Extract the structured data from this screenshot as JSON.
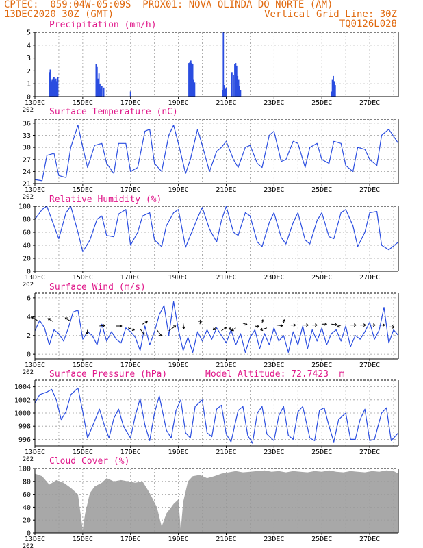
{
  "header": {
    "line1_left": "CPTEC:  059:04W-05:09S  PROX01: NOVA OLINDA DO NORTE (AM)",
    "line2_left": "13DEC2020 30Z (GMT)",
    "line2_right": "Vertical Grid Line: 30Z",
    "line3_right": "TQ0126L028"
  },
  "colors": {
    "header": "#e06a10",
    "panel_title": "#e0188a",
    "line": "#2a4de0",
    "cloud_fill": "#a8a8a8",
    "grid": "#9a9a9a",
    "arrow": "#000000"
  },
  "x_axis": {
    "tick_labels": [
      "13DEC",
      "15DEC",
      "17DEC",
      "19DEC",
      "21DEC",
      "23DEC",
      "25DEC",
      "27DEC"
    ],
    "year_label": "202"
  },
  "chart_data": [
    {
      "type": "bar",
      "title": "Precipitation (mm/h)",
      "ylim": [
        0,
        5
      ],
      "yticks": [
        "0",
        "1",
        "2",
        "3",
        "4",
        "5"
      ],
      "x_unit": "days since 13DEC 00Z",
      "x": [
        0.6,
        0.64,
        0.68,
        0.72,
        0.76,
        0.8,
        0.84,
        0.88,
        0.92,
        0.96,
        2.56,
        2.6,
        2.64,
        2.68,
        2.72,
        2.76,
        2.8,
        2.88,
        4.0,
        6.44,
        6.48,
        6.52,
        6.56,
        6.6,
        6.64,
        6.68,
        7.84,
        7.88,
        7.92,
        7.96,
        8.0,
        8.24,
        8.3,
        8.36,
        8.4,
        8.44,
        8.48,
        8.52,
        8.56,
        8.6,
        12.4,
        12.44,
        12.48,
        12.52,
        12.56
      ],
      "values": [
        1.9,
        2.1,
        1.2,
        1.3,
        1.4,
        1.5,
        1.3,
        1.4,
        1.2,
        1.5,
        2.5,
        2.3,
        1.4,
        1.8,
        1.0,
        0.6,
        0.8,
        0.7,
        0.4,
        2.6,
        2.7,
        2.8,
        2.6,
        2.5,
        1.3,
        1.1,
        0.5,
        5.0,
        0.9,
        0.6,
        0.7,
        1.9,
        1.7,
        2.5,
        2.6,
        2.4,
        1.6,
        1.3,
        0.8,
        0.5,
        0.4,
        1.3,
        1.6,
        1.2,
        0.9
      ],
      "grid": true
    },
    {
      "type": "line",
      "title": "Surface Temperature (nC)",
      "ylim": [
        21,
        37
      ],
      "yticks": [
        "21",
        "24",
        "27",
        "30",
        "33",
        "36"
      ],
      "x": [
        0,
        0.3,
        0.5,
        0.8,
        1.0,
        1.3,
        1.5,
        1.8,
        2.0,
        2.2,
        2.5,
        2.8,
        3.0,
        3.3,
        3.5,
        3.8,
        4.0,
        4.3,
        4.6,
        4.8,
        5.0,
        5.3,
        5.6,
        5.8,
        6.0,
        6.3,
        6.5,
        6.8,
        7.0,
        7.3,
        7.6,
        7.8,
        8.0,
        8.3,
        8.5,
        8.8,
        9.0,
        9.3,
        9.5,
        9.8,
        10.0,
        10.3,
        10.5,
        10.8,
        11.0,
        11.3,
        11.5,
        11.8,
        12.0,
        12.3,
        12.5,
        12.8,
        13.0,
        13.3,
        13.5,
        13.8,
        14.0,
        14.3,
        14.5,
        14.8,
        15.2
      ],
      "values": [
        22,
        21.7,
        28,
        28.5,
        23,
        22.5,
        30,
        35.5,
        30,
        25,
        30.5,
        31,
        26,
        23.5,
        31,
        31,
        24,
        25,
        34,
        34.5,
        26,
        24,
        33,
        35.5,
        31,
        23.5,
        27,
        34.5,
        30.5,
        24,
        29,
        30,
        31.5,
        27,
        25,
        30,
        30.5,
        26,
        25,
        33,
        34,
        26.5,
        27,
        31.5,
        31,
        25,
        30,
        31,
        27,
        26,
        31.5,
        31,
        25.5,
        24,
        30,
        29.5,
        27,
        25.5,
        33,
        34.5,
        31
      ],
      "grid": true
    },
    {
      "type": "line",
      "title": "Relative Humidity (%)",
      "ylim": [
        0,
        100
      ],
      "yticks": [
        "0",
        "20",
        "40",
        "60",
        "80",
        "100"
      ],
      "x": [
        0,
        0.3,
        0.5,
        0.8,
        1.0,
        1.3,
        1.5,
        1.8,
        2.0,
        2.3,
        2.6,
        2.8,
        3.0,
        3.3,
        3.5,
        3.8,
        4.0,
        4.3,
        4.5,
        4.8,
        5.0,
        5.3,
        5.5,
        5.8,
        6.0,
        6.3,
        6.5,
        6.8,
        7.0,
        7.3,
        7.6,
        7.8,
        8.0,
        8.3,
        8.5,
        8.8,
        9.0,
        9.3,
        9.5,
        9.8,
        10.0,
        10.3,
        10.5,
        10.8,
        11.0,
        11.3,
        11.5,
        11.8,
        12.0,
        12.3,
        12.5,
        12.8,
        13.0,
        13.3,
        13.5,
        13.8,
        14.0,
        14.3,
        14.5,
        14.8,
        15.2
      ],
      "values": [
        80,
        95,
        100,
        70,
        50,
        90,
        100,
        60,
        30,
        48,
        80,
        85,
        55,
        53,
        88,
        95,
        40,
        60,
        85,
        90,
        48,
        38,
        70,
        90,
        95,
        37,
        55,
        82,
        98,
        65,
        45,
        78,
        100,
        60,
        55,
        90,
        85,
        45,
        38,
        75,
        90,
        52,
        42,
        75,
        90,
        48,
        42,
        78,
        90,
        53,
        50,
        90,
        95,
        70,
        38,
        60,
        90,
        92,
        40,
        33,
        45
      ],
      "grid": true
    },
    {
      "type": "line",
      "title": "Surface Wind (m/s)",
      "ylim": [
        -0.5,
        6.5
      ],
      "yticks": [
        "0",
        "2",
        "4",
        "6"
      ],
      "x": [
        0,
        0.2,
        0.4,
        0.6,
        0.8,
        1.0,
        1.2,
        1.4,
        1.6,
        1.8,
        2.0,
        2.2,
        2.4,
        2.6,
        2.8,
        3.0,
        3.2,
        3.4,
        3.6,
        3.8,
        4.0,
        4.2,
        4.4,
        4.6,
        4.8,
        5.0,
        5.2,
        5.4,
        5.6,
        5.8,
        6.0,
        6.2,
        6.4,
        6.6,
        6.8,
        7.0,
        7.2,
        7.4,
        7.6,
        7.8,
        8.0,
        8.2,
        8.4,
        8.6,
        8.8,
        9.0,
        9.2,
        9.4,
        9.6,
        9.8,
        10.0,
        10.2,
        10.4,
        10.6,
        10.8,
        11.0,
        11.2,
        11.4,
        11.6,
        11.8,
        12.0,
        12.2,
        12.4,
        12.6,
        12.8,
        13.0,
        13.2,
        13.4,
        13.6,
        13.8,
        14.0,
        14.2,
        14.4,
        14.6,
        14.8,
        15.0,
        15.2
      ],
      "values": [
        2.5,
        3.6,
        2.8,
        1.0,
        2.6,
        2.2,
        1.4,
        2.8,
        4.5,
        4.7,
        1.6,
        2.4,
        2.0,
        1.0,
        3.2,
        1.4,
        2.4,
        1.6,
        1.2,
        2.8,
        2.4,
        1.8,
        0.4,
        3.0,
        1.0,
        2.4,
        4.2,
        5.2,
        2.0,
        5.6,
        2.6,
        0.4,
        1.8,
        0.2,
        2.4,
        1.4,
        2.6,
        1.6,
        2.8,
        2.0,
        1.2,
        2.6,
        1.0,
        2.2,
        0.2,
        1.8,
        2.6,
        0.6,
        2.2,
        1.0,
        2.8,
        1.4,
        2.0,
        0.2,
        2.4,
        1.0,
        3.0,
        0.6,
        2.6,
        1.4,
        2.8,
        1.0,
        2.2,
        2.6,
        1.4,
        3.0,
        0.8,
        2.0,
        1.6,
        2.4,
        3.4,
        1.6,
        2.6,
        5.0,
        1.2,
        2.6,
        2.0
      ],
      "arrows": [
        {
          "x": 0.1,
          "y": 3.6,
          "dx": -8,
          "dy": -5
        },
        {
          "x": 0.75,
          "y": 3.5,
          "dx": -7,
          "dy": -4
        },
        {
          "x": 1.5,
          "y": 3.5,
          "dx": -8,
          "dy": -5
        },
        {
          "x": 2.2,
          "y": 2.6,
          "dx": -1,
          "dy": 6
        },
        {
          "x": 2.7,
          "y": 3.0,
          "dx": 8,
          "dy": -1
        },
        {
          "x": 3.4,
          "y": 3.0,
          "dx": 8,
          "dy": 0
        },
        {
          "x": 3.9,
          "y": 2.8,
          "dx": 9,
          "dy": 3
        },
        {
          "x": 4.4,
          "y": 2.7,
          "dx": 6,
          "dy": 8
        },
        {
          "x": 4.5,
          "y": 3.2,
          "dx": 7,
          "dy": -4
        },
        {
          "x": 5.1,
          "y": 2.6,
          "dx": 7,
          "dy": 9
        },
        {
          "x": 5.6,
          "y": 2.5,
          "dx": 10,
          "dy": -7
        },
        {
          "x": 6.2,
          "y": 3.3,
          "dx": 1,
          "dy": 8
        },
        {
          "x": 6.9,
          "y": 3.2,
          "dx": 1,
          "dy": -6
        },
        {
          "x": 7.6,
          "y": 2.9,
          "dx": -5,
          "dy": 4
        },
        {
          "x": 7.8,
          "y": 2.5,
          "dx": 7,
          "dy": -5
        },
        {
          "x": 8.1,
          "y": 2.9,
          "dx": 3,
          "dy": 4
        },
        {
          "x": 8.4,
          "y": 2.8,
          "dx": -6,
          "dy": 4
        },
        {
          "x": 8.7,
          "y": 3.3,
          "dx": 6,
          "dy": 2
        },
        {
          "x": 9.2,
          "y": 3.0,
          "dx": 6,
          "dy": 1
        },
        {
          "x": 9.5,
          "y": 3.3,
          "dx": 1,
          "dy": -5
        },
        {
          "x": 9.7,
          "y": 2.8,
          "dx": -9,
          "dy": 3
        },
        {
          "x": 10.1,
          "y": 3.1,
          "dx": 9,
          "dy": 1
        },
        {
          "x": 10.4,
          "y": 3.3,
          "dx": 1,
          "dy": -5
        },
        {
          "x": 10.7,
          "y": 3.1,
          "dx": 7,
          "dy": 0
        },
        {
          "x": 11.2,
          "y": 3.1,
          "dx": 8,
          "dy": 0
        },
        {
          "x": 11.6,
          "y": 3.1,
          "dx": 7,
          "dy": 0
        },
        {
          "x": 12.0,
          "y": 3.2,
          "dx": 7,
          "dy": 0
        },
        {
          "x": 12.4,
          "y": 3.2,
          "dx": 8,
          "dy": 1
        },
        {
          "x": 12.8,
          "y": 3.1,
          "dx": -5,
          "dy": 3
        },
        {
          "x": 13.2,
          "y": 3.1,
          "dx": 8,
          "dy": 0
        },
        {
          "x": 13.6,
          "y": 3.1,
          "dx": 8,
          "dy": 0
        },
        {
          "x": 14.0,
          "y": 3.1,
          "dx": 8,
          "dy": 0
        },
        {
          "x": 14.4,
          "y": 3.1,
          "dx": 8,
          "dy": 0
        },
        {
          "x": 14.8,
          "y": 2.9,
          "dx": 8,
          "dy": 0
        }
      ],
      "grid": true
    },
    {
      "type": "line",
      "title": "Surface Pressure (hPa)",
      "annotation": "Model Altitude: 72.7423  m",
      "ylim": [
        995,
        1005
      ],
      "yticks": [
        "996",
        "998",
        "1000",
        "1002",
        "1004"
      ],
      "x": [
        0,
        0.2,
        0.5,
        0.7,
        0.9,
        1.1,
        1.3,
        1.5,
        1.8,
        2.0,
        2.2,
        2.5,
        2.7,
        2.9,
        3.1,
        3.3,
        3.5,
        3.7,
        4.0,
        4.2,
        4.4,
        4.6,
        4.8,
        5.0,
        5.2,
        5.5,
        5.7,
        5.9,
        6.1,
        6.3,
        6.5,
        6.7,
        7.0,
        7.2,
        7.4,
        7.6,
        7.8,
        8.0,
        8.2,
        8.5,
        8.7,
        8.9,
        9.1,
        9.3,
        9.5,
        9.7,
        10.0,
        10.2,
        10.4,
        10.6,
        10.8,
        11.0,
        11.2,
        11.5,
        11.7,
        11.9,
        12.1,
        12.3,
        12.5,
        12.7,
        13.0,
        13.2,
        13.4,
        13.6,
        13.8,
        14.0,
        14.2,
        14.5,
        14.7,
        14.9,
        15.2
      ],
      "values": [
        1001.5,
        1002.8,
        1003.2,
        1003.6,
        1002.0,
        999.0,
        1000.2,
        1002.8,
        1003.8,
        1000.2,
        996.2,
        998.8,
        1000.6,
        998.2,
        996.2,
        999.2,
        1000.6,
        998.0,
        996.2,
        999.6,
        1002.2,
        998.2,
        995.8,
        1000.0,
        1002.6,
        997.4,
        996.2,
        1000.4,
        1002.0,
        997.0,
        996.2,
        1001.0,
        1002.0,
        997.0,
        996.4,
        1000.6,
        1001.2,
        996.8,
        995.6,
        1000.4,
        1001.0,
        996.6,
        995.4,
        1000.0,
        1001.0,
        996.8,
        995.8,
        999.6,
        1001.0,
        996.6,
        996.0,
        1000.2,
        1001.0,
        996.2,
        995.8,
        1000.4,
        1000.8,
        998.0,
        995.6,
        999.0,
        1000.0,
        996.0,
        996.0,
        999.0,
        1000.6,
        995.8,
        996.0,
        1000.0,
        1000.8,
        995.8,
        997.0
      ],
      "grid": true
    },
    {
      "type": "area",
      "title": "Cloud Cover (%)",
      "ylim": [
        0,
        100
      ],
      "yticks": [
        "0",
        "20",
        "40",
        "60",
        "80",
        "100"
      ],
      "x": [
        0,
        0.3,
        0.6,
        0.9,
        1.2,
        1.5,
        1.8,
        2.0,
        2.1,
        2.3,
        2.5,
        2.8,
        3.0,
        3.3,
        3.6,
        3.9,
        4.2,
        4.5,
        4.8,
        5.1,
        5.3,
        5.5,
        5.8,
        6.0,
        6.1,
        6.2,
        6.4,
        6.6,
        6.9,
        7.2,
        7.5,
        7.8,
        8.1,
        8.4,
        8.7,
        9.0,
        9.3,
        9.6,
        9.9,
        10.2,
        10.5,
        10.8,
        11.1,
        11.4,
        11.7,
        12.0,
        12.3,
        12.6,
        12.9,
        13.2,
        13.5,
        13.8,
        14.1,
        14.4,
        14.7,
        15.0,
        15.2
      ],
      "values": [
        92,
        88,
        75,
        82,
        78,
        70,
        60,
        5,
        30,
        62,
        72,
        78,
        85,
        80,
        82,
        80,
        78,
        80,
        62,
        40,
        10,
        30,
        45,
        52,
        5,
        48,
        80,
        88,
        90,
        85,
        88,
        92,
        94,
        96,
        94,
        95,
        96,
        97,
        95,
        96,
        94,
        96,
        95,
        94,
        96,
        95,
        97,
        95,
        94,
        96,
        95,
        94,
        96,
        95,
        97,
        96,
        92
      ],
      "grid": true
    }
  ]
}
